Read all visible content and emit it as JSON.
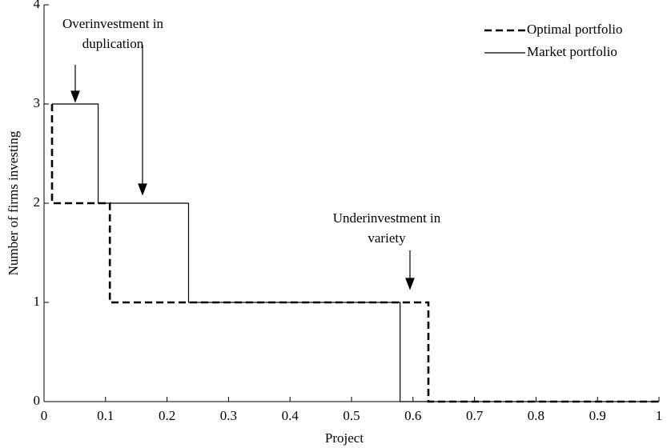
{
  "chart_data": {
    "type": "line",
    "xlabel": "Project",
    "ylabel": "Number of firms investing",
    "xlim": [
      0,
      1
    ],
    "ylim": [
      0,
      4
    ],
    "xticks": [
      0,
      0.1,
      0.2,
      0.3,
      0.4,
      0.5,
      0.6,
      0.7,
      0.8,
      0.9,
      1
    ],
    "yticks": [
      0,
      1,
      2,
      3,
      4
    ],
    "legend": "upper right",
    "series": [
      {
        "name": "Optimal portfolio",
        "color": "#000000",
        "dash": true,
        "x": [
          0.013,
          0.013,
          0.107,
          0.107,
          0.625,
          0.625,
          1
        ],
        "values": [
          3,
          2,
          2,
          1,
          1,
          0,
          0
        ]
      },
      {
        "name": "Market portfolio",
        "color": "#000000",
        "dash": false,
        "x": [
          0.013,
          0.088,
          0.088,
          0.235,
          0.235,
          0.579,
          0.579,
          1
        ],
        "values": [
          3,
          3,
          2,
          2,
          1,
          1,
          0,
          0
        ]
      }
    ],
    "annotations": [
      {
        "lines": [
          "Overinvestment in",
          "duplication"
        ]
      },
      {
        "lines": [
          "Underinvestment in",
          "variety"
        ]
      }
    ]
  }
}
